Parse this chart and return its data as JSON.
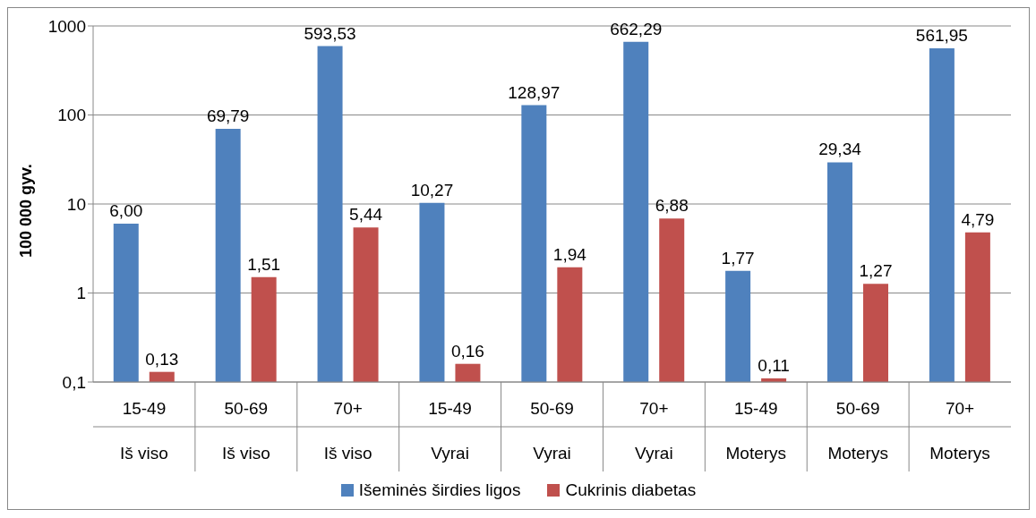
{
  "chart_data": {
    "type": "bar",
    "ylabel": "100 000 gyv.",
    "categories": [
      "15-49\nIš viso",
      "50-69\nIš viso",
      "70+\nIš viso",
      "15-49\nVyrai",
      "50-69\nVyrai",
      "70+\nVyrai",
      "15-49\nMoterys",
      "50-69\nMoterys",
      "70+\nMoterys"
    ],
    "series": [
      {
        "name": "Išeminės širdies ligos",
        "color": "#4f81bd",
        "values": [
          6.0,
          69.79,
          593.53,
          10.27,
          128.97,
          662.29,
          1.77,
          29.34,
          561.95
        ],
        "value_labels": [
          "6,00",
          "69,79",
          "593,53",
          "10,27",
          "128,97",
          "662,29",
          "1,77",
          "29,34",
          "561,95"
        ]
      },
      {
        "name": "Cukrinis diabetas",
        "color": "#c0504d",
        "values": [
          0.13,
          1.51,
          5.44,
          0.16,
          1.94,
          6.88,
          0.11,
          1.27,
          4.79
        ],
        "value_labels": [
          "0,13",
          "1,51",
          "5,44",
          "0,16",
          "1,94",
          "6,88",
          "0,11",
          "1,27",
          "4,79"
        ]
      }
    ],
    "log": "y",
    "ylim": [
      0.1,
      1000
    ],
    "yticks": [
      {
        "value": 0.1,
        "label": "0,1"
      },
      1,
      10,
      100,
      1000
    ],
    "grid": "y",
    "legend": "bottom"
  }
}
